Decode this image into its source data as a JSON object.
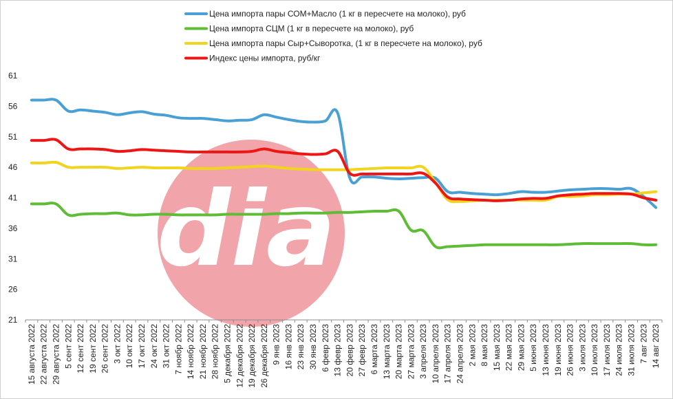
{
  "chart_data": {
    "type": "line",
    "ylim": [
      21,
      61
    ],
    "yticks": [
      61,
      56,
      51,
      46,
      41,
      36,
      31,
      26,
      21
    ],
    "grid": false,
    "legend_position": "top",
    "categories": [
      "15 августа 2022",
      "22 августа 2022",
      "29 августа 2022",
      "5 сент 2022",
      "12 сент 2022",
      "19 сент 2022",
      "26 сент 2022",
      "3 окт 2022",
      "10 окт 2022",
      "17 окт 2022",
      "24 окт 2022",
      "31 окт 2022",
      "7 ноябр 2022",
      "14 ноябр 2022",
      "21 ноябр 2022",
      "28 ноябр 2022",
      "5 декабря 2022",
      "12 декабря 2022",
      "19 декабря 2022",
      "26 декабря 2022",
      "9 янв 2023",
      "16 янв 2023",
      "23 янв 2023",
      "30 янв 2023",
      "6 февр 2023",
      "13 февр 2023",
      "20 февр 2023",
      "27 февр 2023",
      "6 марта 2023",
      "13 марта 2023",
      "20 марта 2023",
      "27 марта 2023",
      "3 апреля 2023",
      "10 апреля 2023",
      "17 апреля 2023",
      "24 апреля 2023",
      "2 мая 2023",
      "8 мая 2023",
      "15 мая 2023",
      "22 мая 2023",
      "29 мая 2023",
      "5 июня 2023",
      "13 июня 2023",
      "19 июня 2023",
      "26 июня 2023",
      "3 июля 2023",
      "10 июля 2023",
      "17 июля 2023",
      "24 июля 2023",
      "31 июля 2023",
      "7 авг 2023",
      "14 авг 2023"
    ],
    "series": [
      {
        "name": "Цена импорта пары СОМ+Масло  (1 кг в пересчете на молоко), руб",
        "color": "#4a9fd4",
        "values": [
          57.0,
          57.0,
          57.0,
          55.2,
          55.4,
          55.2,
          55.0,
          54.6,
          54.9,
          55.1,
          54.7,
          54.5,
          54.1,
          54.0,
          54.0,
          53.8,
          53.6,
          53.7,
          53.8,
          54.6,
          54.2,
          53.8,
          53.5,
          53.4,
          53.6,
          54.9,
          44.2,
          44.4,
          44.4,
          44.2,
          44.1,
          44.2,
          44.3,
          44.2,
          42.0,
          41.9,
          41.7,
          41.6,
          41.5,
          41.7,
          42.0,
          41.9,
          41.9,
          42.1,
          42.3,
          42.4,
          42.5,
          42.5,
          42.4,
          42.5,
          41.2,
          39.4
        ]
      },
      {
        "name": "Цена импорта СЦМ (1 кг в пересчете на молоко), руб",
        "color": "#5ebc36",
        "values": [
          40.0,
          40.0,
          40.0,
          38.2,
          38.3,
          38.4,
          38.4,
          38.5,
          38.2,
          38.2,
          38.3,
          38.3,
          38.2,
          38.2,
          38.2,
          38.2,
          38.3,
          38.3,
          38.3,
          38.3,
          38.4,
          38.4,
          38.5,
          38.5,
          38.5,
          38.6,
          38.6,
          38.7,
          38.8,
          38.8,
          38.8,
          35.7,
          35.6,
          33.0,
          33.0,
          33.1,
          33.2,
          33.3,
          33.3,
          33.3,
          33.3,
          33.3,
          33.3,
          33.3,
          33.4,
          33.5,
          33.5,
          33.5,
          33.5,
          33.5,
          33.3,
          33.3
        ]
      },
      {
        "name": "Цена импорта пары Сыр+Сыворотка, (1 кг в пересчете на молоко), руб",
        "color": "#f0d41e",
        "values": [
          46.7,
          46.7,
          46.8,
          46.0,
          46.0,
          46.0,
          46.0,
          45.8,
          45.9,
          46.0,
          45.9,
          45.9,
          45.9,
          45.8,
          45.8,
          45.8,
          45.9,
          46.0,
          46.1,
          46.2,
          46.0,
          45.8,
          45.7,
          45.6,
          45.6,
          45.6,
          45.6,
          45.7,
          45.8,
          45.9,
          45.9,
          45.9,
          46.0,
          43.5,
          40.7,
          40.4,
          40.5,
          40.6,
          40.6,
          40.6,
          40.6,
          40.6,
          40.6,
          41.2,
          41.2,
          41.3,
          41.5,
          41.5,
          41.6,
          41.6,
          41.8,
          42.0
        ]
      },
      {
        "name": "Индекс цены импорта, руб/кг",
        "color": "#ee1515",
        "values": [
          50.4,
          50.4,
          50.5,
          49.0,
          49.0,
          49.0,
          48.9,
          48.6,
          48.7,
          48.9,
          48.8,
          48.7,
          48.6,
          48.5,
          48.5,
          48.5,
          48.5,
          48.5,
          48.6,
          49.0,
          48.6,
          48.4,
          48.2,
          48.1,
          48.2,
          48.6,
          45.0,
          44.9,
          44.9,
          44.9,
          44.9,
          44.9,
          45.0,
          43.4,
          41.1,
          40.8,
          40.7,
          40.6,
          40.5,
          40.6,
          40.8,
          40.9,
          40.9,
          41.3,
          41.5,
          41.6,
          41.7,
          41.7,
          41.7,
          41.6,
          41.0,
          40.6
        ]
      }
    ]
  },
  "watermark": {
    "text": "dia",
    "circle_color": "#f0a0a6"
  }
}
